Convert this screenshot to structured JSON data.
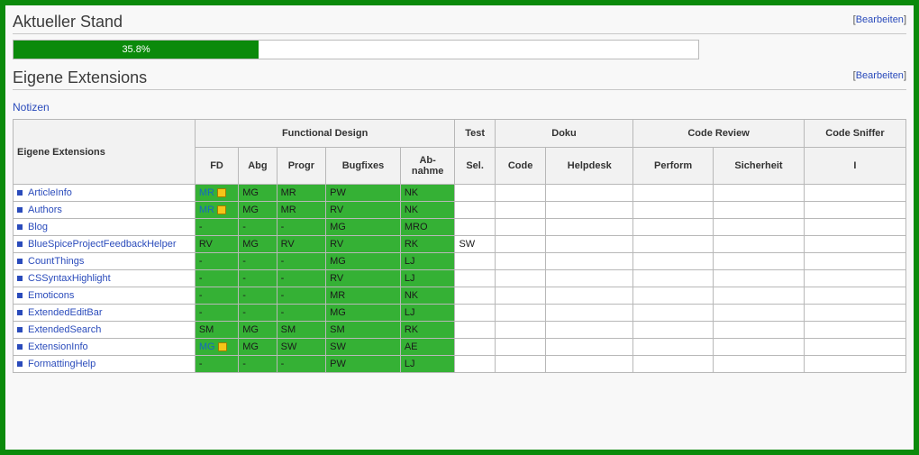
{
  "colors": {
    "frame_border": "#0b8a0b",
    "link": "#2a4bbb",
    "cell_green": "#35b135",
    "progress_fill": "#0b8a0b",
    "lock_fill": "#f5c518",
    "lock_border": "#a07c00"
  },
  "sections": {
    "status": {
      "title": "Aktueller Stand",
      "edit_label": "Bearbeiten",
      "progress_percent": 35.8,
      "progress_label": "35.8%"
    },
    "extensions": {
      "title": "Eigene Extensions",
      "edit_label": "Bearbeiten",
      "notes_label": "Notizen"
    }
  },
  "table": {
    "group_headers": {
      "name_blank": "",
      "functional_design": "Functional Design",
      "test": "Test",
      "doku": "Doku",
      "code_review": "Code Review",
      "code_sniffer": "Code Sniffer"
    },
    "sub_headers": {
      "name": "Eigene Extensions",
      "fd": "FD",
      "abg": "Abg",
      "progr": "Progr",
      "bugfixes": "Bugfixes",
      "abnahme": "Ab-\nnahme",
      "sel": "Sel.",
      "code": "Code",
      "helpdesk": "Helpdesk",
      "perform": "Perform",
      "sicherheit": "Sicherheit",
      "cs_i": "I"
    },
    "rows": [
      {
        "name": "ArticleInfo",
        "cells": [
          {
            "text": "MR",
            "green": true,
            "link": true,
            "lock": true
          },
          {
            "text": "MG",
            "green": true
          },
          {
            "text": "MR",
            "green": true
          },
          {
            "text": "PW",
            "green": true
          },
          {
            "text": "NK",
            "green": true
          },
          {
            "text": ""
          },
          {
            "text": ""
          },
          {
            "text": ""
          },
          {
            "text": ""
          },
          {
            "text": ""
          },
          {
            "text": ""
          }
        ]
      },
      {
        "name": "Authors",
        "cells": [
          {
            "text": "MR",
            "green": true,
            "link": true,
            "lock": true
          },
          {
            "text": "MG",
            "green": true
          },
          {
            "text": "MR",
            "green": true
          },
          {
            "text": "RV",
            "green": true
          },
          {
            "text": "NK",
            "green": true
          },
          {
            "text": ""
          },
          {
            "text": ""
          },
          {
            "text": ""
          },
          {
            "text": ""
          },
          {
            "text": ""
          },
          {
            "text": ""
          }
        ]
      },
      {
        "name": "Blog",
        "cells": [
          {
            "text": "-",
            "green": true
          },
          {
            "text": "-",
            "green": true
          },
          {
            "text": "-",
            "green": true
          },
          {
            "text": "MG",
            "green": true
          },
          {
            "text": "MRO",
            "green": true
          },
          {
            "text": ""
          },
          {
            "text": ""
          },
          {
            "text": ""
          },
          {
            "text": ""
          },
          {
            "text": ""
          },
          {
            "text": ""
          }
        ]
      },
      {
        "name": "BlueSpiceProjectFeedbackHelper",
        "cells": [
          {
            "text": "RV",
            "green": true
          },
          {
            "text": "MG",
            "green": true
          },
          {
            "text": "RV",
            "green": true
          },
          {
            "text": "RV",
            "green": true
          },
          {
            "text": "RK",
            "green": true
          },
          {
            "text": "SW"
          },
          {
            "text": ""
          },
          {
            "text": ""
          },
          {
            "text": ""
          },
          {
            "text": ""
          },
          {
            "text": ""
          }
        ]
      },
      {
        "name": "CountThings",
        "cells": [
          {
            "text": "-",
            "green": true
          },
          {
            "text": "-",
            "green": true
          },
          {
            "text": "-",
            "green": true
          },
          {
            "text": "MG",
            "green": true
          },
          {
            "text": "LJ",
            "green": true
          },
          {
            "text": ""
          },
          {
            "text": ""
          },
          {
            "text": ""
          },
          {
            "text": ""
          },
          {
            "text": ""
          },
          {
            "text": ""
          }
        ]
      },
      {
        "name": "CSSyntaxHighlight",
        "cells": [
          {
            "text": "-",
            "green": true
          },
          {
            "text": "-",
            "green": true
          },
          {
            "text": "-",
            "green": true
          },
          {
            "text": "RV",
            "green": true
          },
          {
            "text": "LJ",
            "green": true
          },
          {
            "text": ""
          },
          {
            "text": ""
          },
          {
            "text": ""
          },
          {
            "text": ""
          },
          {
            "text": ""
          },
          {
            "text": ""
          }
        ]
      },
      {
        "name": "Emoticons",
        "cells": [
          {
            "text": "-",
            "green": true
          },
          {
            "text": "-",
            "green": true
          },
          {
            "text": "-",
            "green": true
          },
          {
            "text": "MR",
            "green": true
          },
          {
            "text": "NK",
            "green": true
          },
          {
            "text": ""
          },
          {
            "text": ""
          },
          {
            "text": ""
          },
          {
            "text": ""
          },
          {
            "text": ""
          },
          {
            "text": ""
          }
        ]
      },
      {
        "name": "ExtendedEditBar",
        "cells": [
          {
            "text": "-",
            "green": true
          },
          {
            "text": "-",
            "green": true
          },
          {
            "text": "-",
            "green": true
          },
          {
            "text": "MG",
            "green": true
          },
          {
            "text": "LJ",
            "green": true
          },
          {
            "text": ""
          },
          {
            "text": ""
          },
          {
            "text": ""
          },
          {
            "text": ""
          },
          {
            "text": ""
          },
          {
            "text": ""
          }
        ]
      },
      {
        "name": "ExtendedSearch",
        "cells": [
          {
            "text": "SM",
            "green": true
          },
          {
            "text": "MG",
            "green": true
          },
          {
            "text": "SM",
            "green": true
          },
          {
            "text": "SM",
            "green": true
          },
          {
            "text": "RK",
            "green": true
          },
          {
            "text": ""
          },
          {
            "text": ""
          },
          {
            "text": ""
          },
          {
            "text": ""
          },
          {
            "text": ""
          },
          {
            "text": ""
          }
        ]
      },
      {
        "name": "ExtensionInfo",
        "cells": [
          {
            "text": "MG",
            "green": true,
            "link": true,
            "lock": true
          },
          {
            "text": "MG",
            "green": true
          },
          {
            "text": "SW",
            "green": true
          },
          {
            "text": "SW",
            "green": true
          },
          {
            "text": "AE",
            "green": true
          },
          {
            "text": ""
          },
          {
            "text": ""
          },
          {
            "text": ""
          },
          {
            "text": ""
          },
          {
            "text": ""
          },
          {
            "text": ""
          }
        ]
      },
      {
        "name": "FormattingHelp",
        "cells": [
          {
            "text": "-",
            "green": true
          },
          {
            "text": "-",
            "green": true
          },
          {
            "text": "-",
            "green": true
          },
          {
            "text": "PW",
            "green": true
          },
          {
            "text": "LJ",
            "green": true
          },
          {
            "text": ""
          },
          {
            "text": ""
          },
          {
            "text": ""
          },
          {
            "text": ""
          },
          {
            "text": ""
          },
          {
            "text": ""
          }
        ]
      }
    ]
  }
}
